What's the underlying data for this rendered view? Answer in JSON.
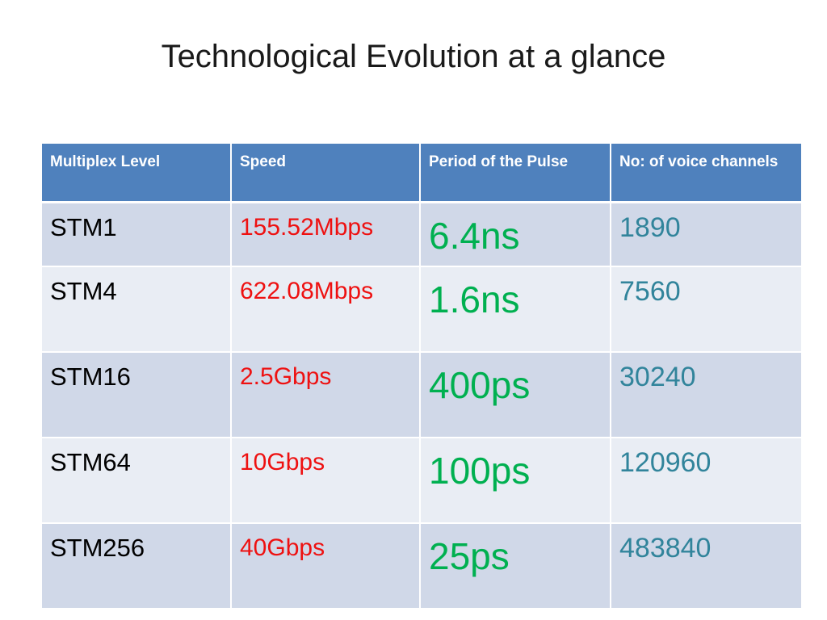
{
  "slide": {
    "title": "Technological Evolution at a glance"
  },
  "table": {
    "headers": [
      "Multiplex Level",
      "Speed",
      "Period of the Pulse",
      "No: of voice channels"
    ],
    "rows": [
      {
        "level": "STM1",
        "speed": "155.52Mbps",
        "period": "6.4ns",
        "channels": "1890"
      },
      {
        "level": "STM4",
        "speed": "622.08Mbps",
        "period": "1.6ns",
        "channels": "7560"
      },
      {
        "level": "STM16",
        "speed": "2.5Gbps",
        "period": "400ps",
        "channels": "30240"
      },
      {
        "level": "STM64",
        "speed": "10Gbps",
        "period": "100ps",
        "channels": "120960"
      },
      {
        "level": "STM256",
        "speed": "40Gbps",
        "period": "25ps",
        "channels": "483840"
      }
    ]
  },
  "colors": {
    "header_bg": "#4f81bd",
    "row_odd_bg": "#d0d8e8",
    "row_even_bg": "#e9edf4",
    "speed_text": "#ee1111",
    "period_text": "#00b050",
    "channels_text": "#31849b"
  }
}
